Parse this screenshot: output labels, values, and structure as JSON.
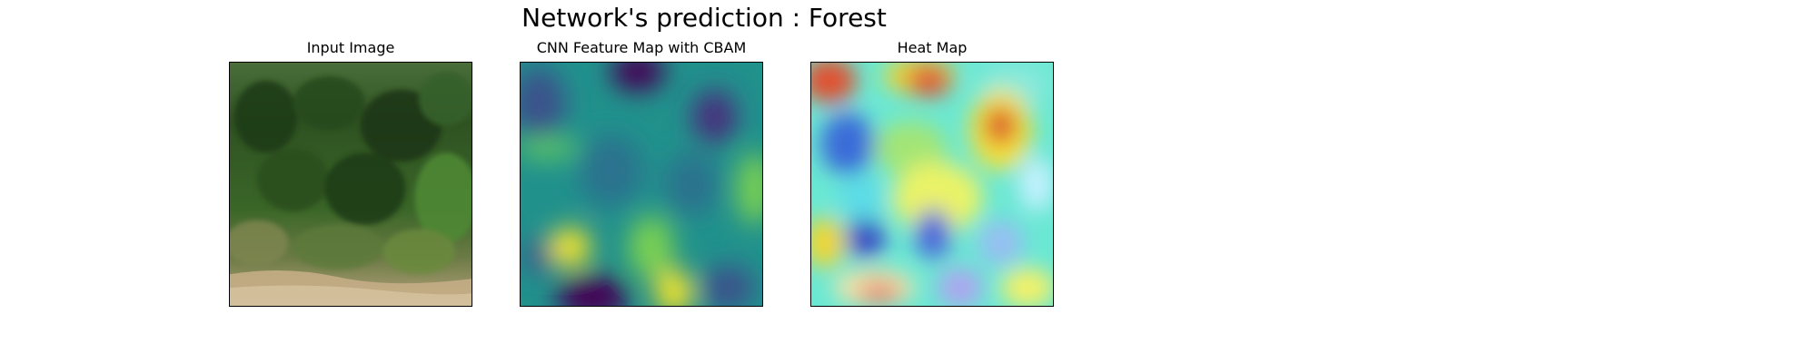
{
  "figure": {
    "title": "Network's prediction : Forest"
  },
  "panels": [
    {
      "title": "Input Image"
    },
    {
      "title": "CNN Feature Map with CBAM"
    },
    {
      "title": "Heat Map"
    }
  ],
  "colors": {
    "viridis_dark": "#440154",
    "viridis_blue": "#3b528b",
    "viridis_teal": "#21918c",
    "viridis_green": "#5ec962",
    "viridis_yellow": "#fde725",
    "forest_dark": "#1f3a16",
    "forest_mid": "#3d6b2a",
    "ground": "#c9b28c"
  }
}
